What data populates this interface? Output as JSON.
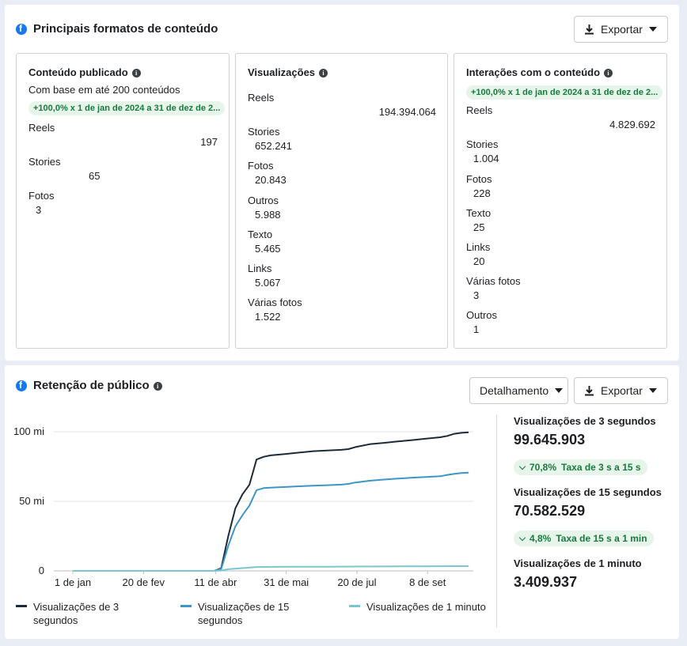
{
  "formats": {
    "title": "Principais formatos de conteúdo",
    "export_label": "Exportar",
    "panels": {
      "published": {
        "title": "Conteúdo publicado",
        "subtitle": "Com base em até 200 conteúdos",
        "badge": "+100,0% x 1 de jan de 2024 a 31 de dez de 2...",
        "rows": [
          {
            "label": "Reels",
            "value": "197"
          },
          {
            "label": "Stories",
            "value": "65"
          },
          {
            "label": "Fotos",
            "value": "3"
          }
        ]
      },
      "views": {
        "title": "Visualizações",
        "rows": [
          {
            "label": "Reels",
            "value": "194.394.064"
          },
          {
            "label": "Stories",
            "value": "652.241"
          },
          {
            "label": "Fotos",
            "value": "20.843"
          },
          {
            "label": "Outros",
            "value": "5.988"
          },
          {
            "label": "Texto",
            "value": "5.465"
          },
          {
            "label": "Links",
            "value": "5.067"
          },
          {
            "label": "Várias fotos",
            "value": "1.522"
          }
        ]
      },
      "interactions": {
        "title": "Interações com o conteúdo",
        "badge": "+100,0% x 1 de jan de 2024 a 31 de dez de 2...",
        "rows": [
          {
            "label": "Reels",
            "value": "4.829.692"
          },
          {
            "label": "Stories",
            "value": "1.004"
          },
          {
            "label": "Fotos",
            "value": "228"
          },
          {
            "label": "Texto",
            "value": "25"
          },
          {
            "label": "Links",
            "value": "20"
          },
          {
            "label": "Várias fotos",
            "value": "3"
          },
          {
            "label": "Outros",
            "value": "1"
          }
        ]
      }
    }
  },
  "retention": {
    "title": "Retenção de público",
    "breakdown_label": "Detalhamento",
    "export_label": "Exportar",
    "stats": {
      "v3_label": "Visualizações de 3 segundos",
      "v3_value": "99.645.903",
      "rate1_pct": "70,8%",
      "rate1_label": "Taxa de 3 s a 15 s",
      "v15_label": "Visualizações de 15 segundos",
      "v15_value": "70.582.529",
      "rate2_pct": "4,8%",
      "rate2_label": "Taxa de 15 s a 1 min",
      "v60_label": "Visualizações de 1 minuto",
      "v60_value": "3.409.937"
    }
  },
  "colors": {
    "brand": "#1877f2",
    "positive_bg": "#e6f4ea",
    "positive_text": "#177a3e",
    "series_3s": "#1c2b39",
    "series_15s": "#3d96c6",
    "series_1m": "#7cc7cf"
  },
  "chart_data": {
    "type": "line",
    "y_ticks": [
      "0",
      "50 mi",
      "100 mi"
    ],
    "ylim": [
      0,
      100
    ],
    "y_unit": "mi",
    "x_tick_labels": [
      "1 de jan",
      "20 de fev",
      "11 de abr",
      "31 de mai",
      "20 de jul",
      "8 de set"
    ],
    "x_days": [
      0,
      50,
      101,
      151,
      201,
      251
    ],
    "xlim": [
      0,
      280
    ],
    "series": [
      {
        "name": "Visualizações de 3 segundos",
        "x": [
          0,
          100,
          105,
          110,
          115,
          120,
          125,
          130,
          135,
          140,
          150,
          160,
          170,
          180,
          190,
          195,
          200,
          210,
          220,
          230,
          240,
          250,
          260,
          265,
          270,
          275,
          280
        ],
        "y": [
          0,
          0,
          2,
          25,
          45,
          55,
          62,
          80,
          82,
          83,
          84,
          85,
          86,
          86.5,
          87,
          87.5,
          89,
          91,
          92,
          93,
          94,
          95,
          96,
          97,
          98.5,
          99.2,
          99.6
        ]
      },
      {
        "name": "Visualizações de 15 segundos",
        "x": [
          0,
          100,
          105,
          110,
          115,
          120,
          125,
          130,
          135,
          140,
          150,
          160,
          170,
          180,
          190,
          195,
          200,
          210,
          220,
          230,
          240,
          250,
          260,
          265,
          270,
          275,
          280
        ],
        "y": [
          0,
          0,
          1.5,
          18,
          32,
          40,
          47,
          58,
          59.5,
          59.8,
          60.3,
          60.8,
          61.2,
          61.6,
          62,
          62.5,
          63.5,
          64.8,
          65.6,
          66.3,
          67,
          67.5,
          68,
          69,
          69.8,
          70.3,
          70.6
        ]
      },
      {
        "name": "Visualizações de 1 minuto",
        "x": [
          0,
          100,
          105,
          110,
          120,
          130,
          140,
          160,
          180,
          200,
          220,
          240,
          260,
          280
        ],
        "y": [
          0,
          0,
          0.3,
          1.2,
          2.0,
          2.8,
          2.9,
          3.0,
          3.0,
          3.1,
          3.2,
          3.3,
          3.35,
          3.4
        ]
      }
    ],
    "grid": true,
    "legend_position": "bottom"
  }
}
